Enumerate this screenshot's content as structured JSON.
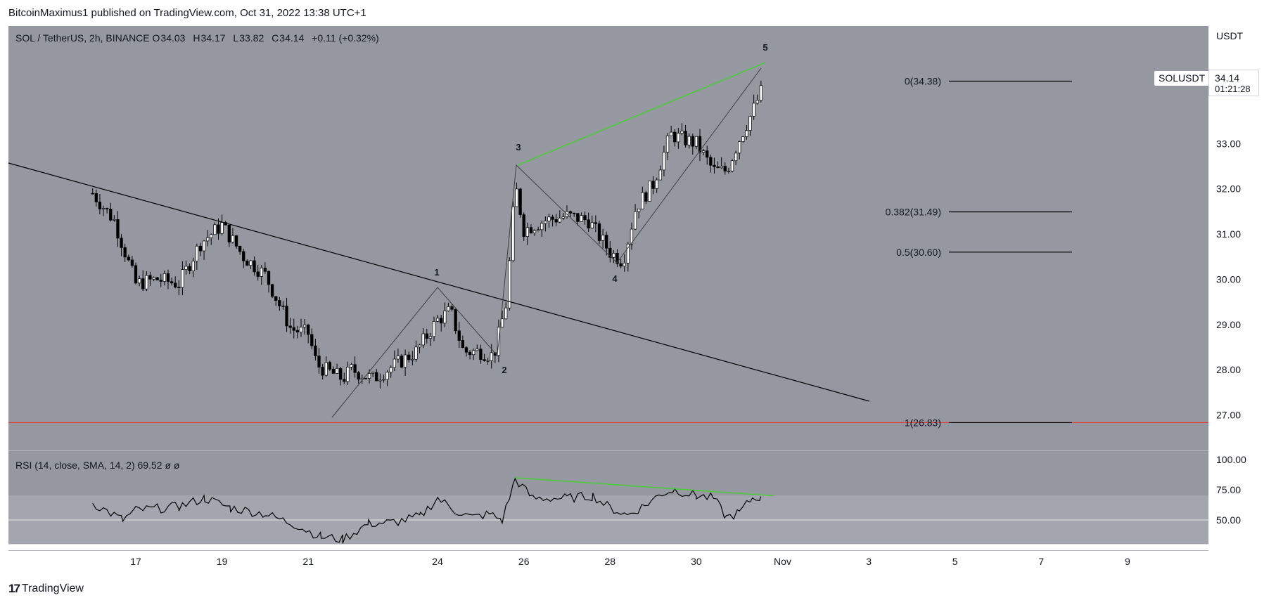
{
  "header": {
    "publisher_text": "BitcoinMaximus1 published on TradingView.com, Oct 31, 2022 13:38 UTC+1"
  },
  "legend": {
    "symbol": "SOL / TetherUS, 2h, BINANCE",
    "o_label": "O",
    "o_value": "34.03",
    "h_label": "H",
    "h_value": "34.17",
    "l_label": "L",
    "l_value": "33.82",
    "c_label": "C",
    "c_value": "34.14",
    "change": "+0.11 (+0.32%)"
  },
  "rsi_legend": {
    "label": "RSI (14, close, SMA, 14, 2)",
    "value": "69.52",
    "extra": "ø ø"
  },
  "price_axis": {
    "currency": "USDT",
    "ticks": [
      "33.00",
      "32.00",
      "31.00",
      "30.00",
      "29.00",
      "28.00",
      "27.00"
    ]
  },
  "rsi_axis": {
    "ticks": [
      "100.00",
      "75.00",
      "50.00"
    ]
  },
  "time_axis": {
    "ticks": [
      "17",
      "19",
      "21",
      "24",
      "26",
      "28",
      "30",
      "Nov",
      "3",
      "5",
      "7",
      "9"
    ]
  },
  "last_price": {
    "symbol": "SOLUSDT",
    "price": "34.14",
    "countdown": "01:21:28"
  },
  "fib_levels": [
    {
      "label": "0(34.38)",
      "ratio": 0,
      "price": 34.38
    },
    {
      "label": "0.382(31.49)",
      "ratio": 0.382,
      "price": 31.49
    },
    {
      "label": "0.5(30.60)",
      "ratio": 0.5,
      "price": 30.6
    },
    {
      "label": "1(26.83)",
      "ratio": 1,
      "price": 26.83
    }
  ],
  "wave_labels": [
    "1",
    "2",
    "3",
    "4",
    "5"
  ],
  "footer": {
    "brand": "TradingView"
  },
  "colors": {
    "background": "#9598a1",
    "candle_up": "#ffffff",
    "candle_down": "#000000",
    "support": "#e53935",
    "trend": "#4caf50",
    "channel": "#1f1f1f"
  },
  "chart_data": {
    "type": "candlestick",
    "title": "SOL / TetherUS, 2h, BINANCE",
    "ylim": [
      26.2,
      35.6
    ],
    "x_ticks": [
      "17",
      "19",
      "21",
      "24",
      "26",
      "28",
      "30",
      "Nov",
      "3",
      "5",
      "7",
      "9"
    ],
    "wave_points": [
      {
        "label": "1",
        "date": "Oct 24",
        "price": 29.6
      },
      {
        "label": "2",
        "date": "Oct 25",
        "price": 28.2
      },
      {
        "label": "3",
        "date": "Oct 25",
        "price": 32.3
      },
      {
        "label": "4",
        "date": "Oct 28",
        "price": 30.15
      },
      {
        "label": "5",
        "date": "Oct 31",
        "price": 34.3
      }
    ],
    "support_line": 26.83,
    "rsi": {
      "ylim": [
        0,
        100
      ],
      "ticks": [
        100,
        75,
        50
      ],
      "last": 69.52
    }
  }
}
